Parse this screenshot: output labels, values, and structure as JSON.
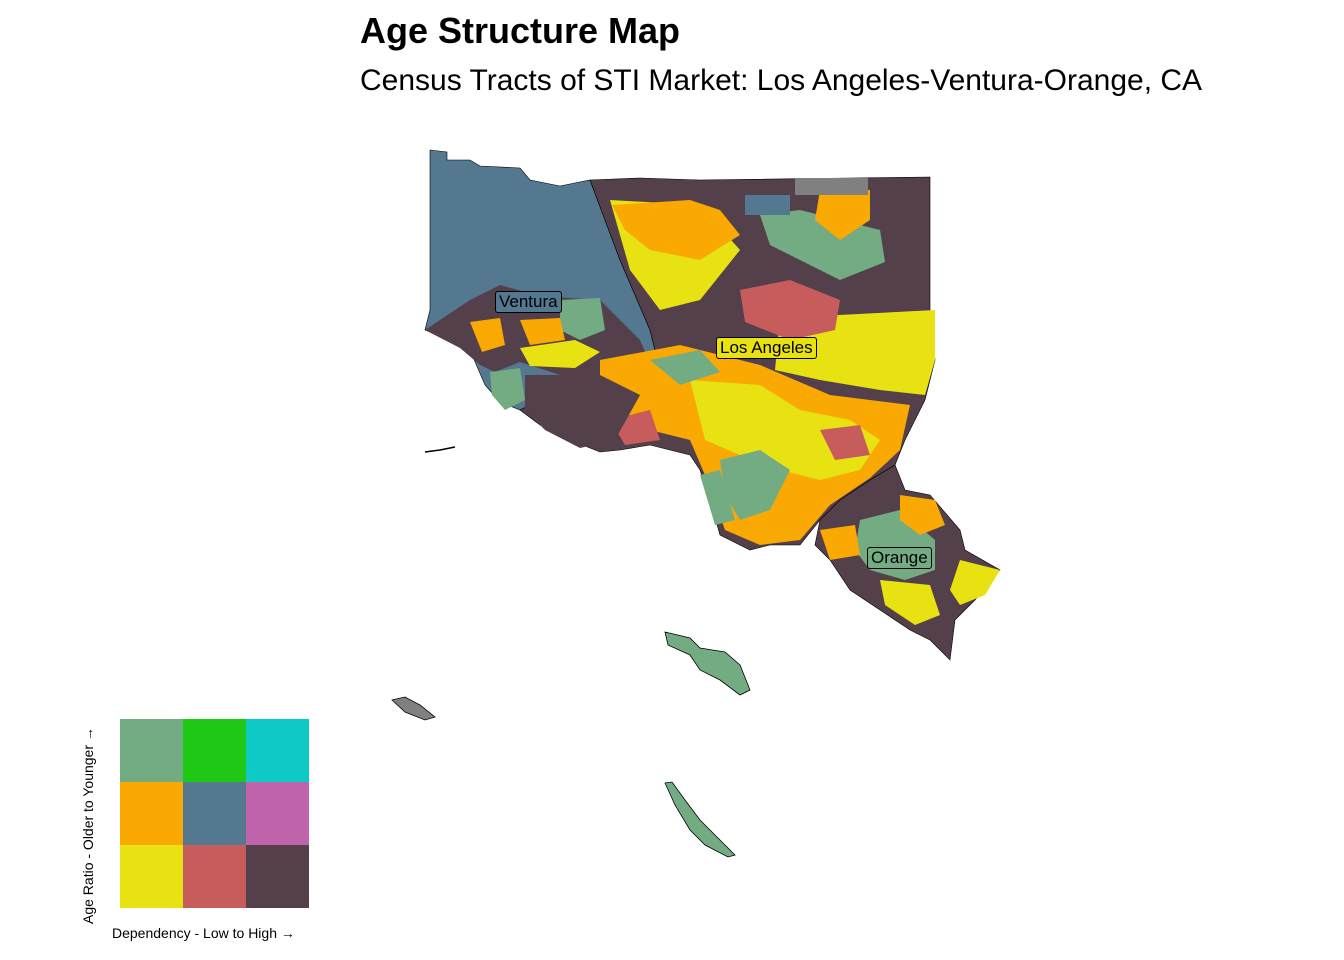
{
  "header": {
    "title": "Age Structure Map",
    "subtitle": "Census Tracts of STI Market: Los Angeles-Ventura-Orange, CA"
  },
  "map": {
    "labels": [
      {
        "id": "ventura",
        "text": "Ventura",
        "bg": "#54788f"
      },
      {
        "id": "los-angeles",
        "text": "Los Angeles",
        "bg": "#e8e213"
      },
      {
        "id": "orange",
        "text": "Orange",
        "bg": "#73ac82"
      }
    ],
    "colors": {
      "no_data": "#808080",
      "county_border": "#000000"
    }
  },
  "legend": {
    "y_label": "Age Ratio - Older to Younger →",
    "x_label": "Dependency - Low to High →",
    "rows": [
      [
        "#73ac82",
        "#1ec814",
        "#0ecac6"
      ],
      [
        "#faa802",
        "#54788f",
        "#bf63aa"
      ],
      [
        "#e8e213",
        "#c65c5c",
        "#54404a"
      ]
    ]
  }
}
